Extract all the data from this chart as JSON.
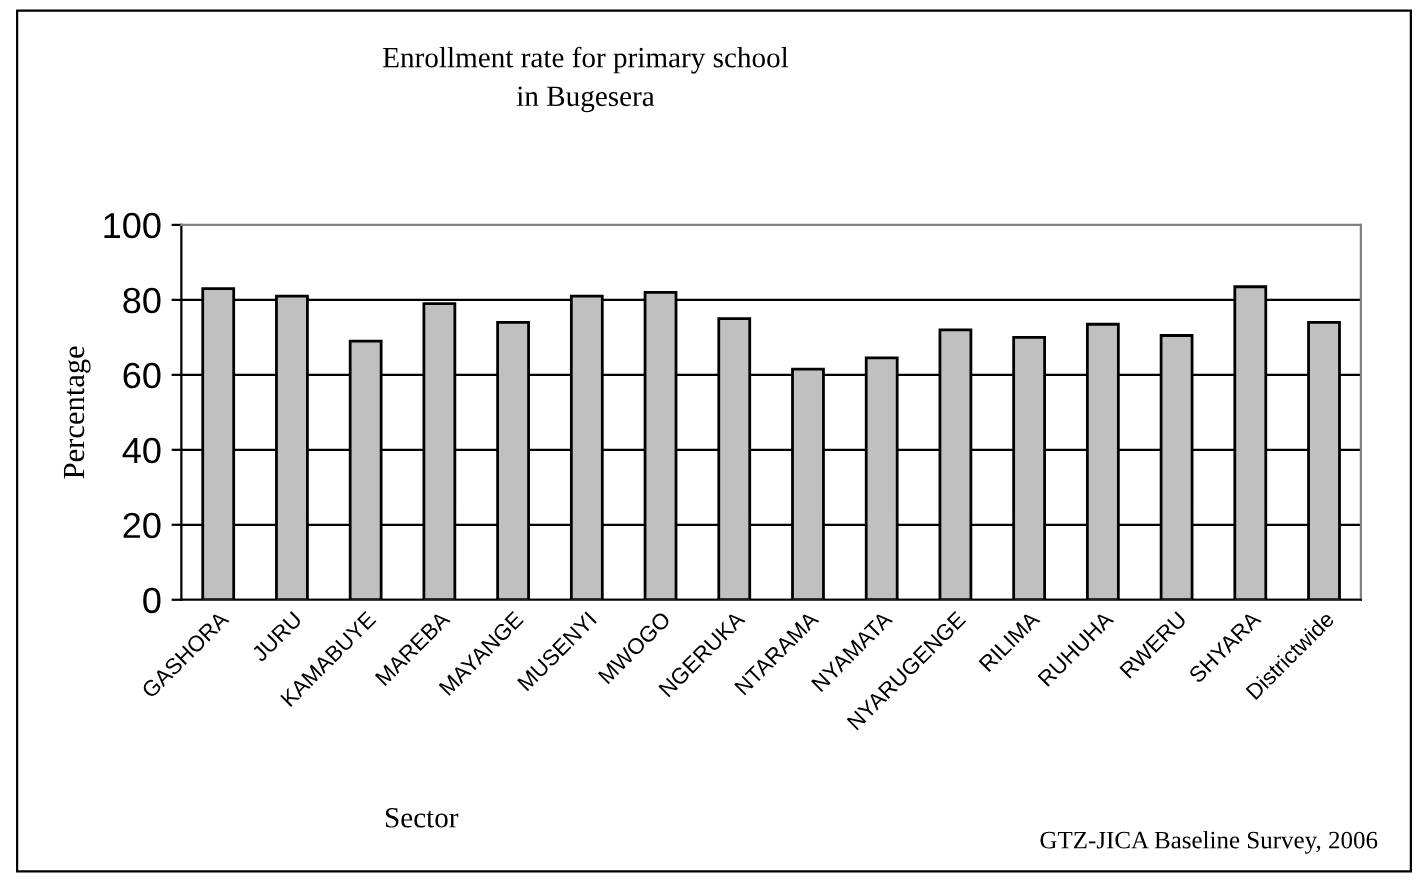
{
  "chart_data": {
    "type": "bar",
    "title": "Enrollment rate for primary school\nin Bugesera",
    "xlabel": "Sector",
    "ylabel": "Percentage",
    "categories": [
      "GASHORA",
      "JURU",
      "KAMABUYE",
      "MAREBA",
      "MAYANGE",
      "MUSENYI",
      "MWOGO",
      "NGERUKA",
      "NTARAMA",
      "NYAMATA",
      "NYARUGENGE",
      "RILIMA",
      "RUHUHA",
      "RWERU",
      "SHYARA",
      "Districtwide"
    ],
    "values": [
      83,
      81,
      69,
      79,
      74,
      81,
      82,
      75,
      61.5,
      64.5,
      72,
      70,
      73.5,
      70.5,
      83.5,
      74
    ],
    "color": "#c0c0c0",
    "ylim": [
      0,
      100
    ],
    "yticks": [
      0,
      20,
      40,
      60,
      80,
      100
    ],
    "grid": "y",
    "legend": false,
    "annotations": [
      "GTZ-JICA Baseline Survey, 2006"
    ]
  }
}
